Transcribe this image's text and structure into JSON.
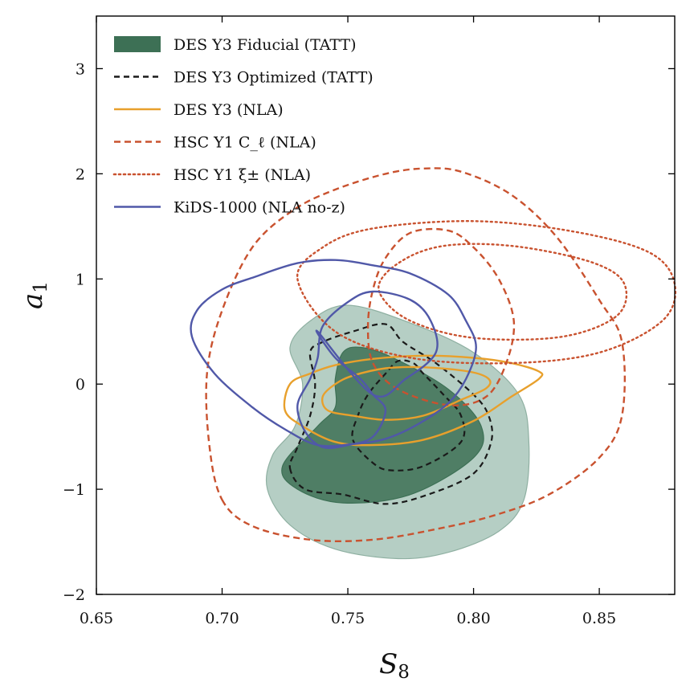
{
  "chart_data": {
    "type": "contour",
    "xlabel": "S",
    "xlabel_sub": "8",
    "ylabel": "a",
    "ylabel_sub": "1",
    "xlim": [
      0.65,
      0.88
    ],
    "ylim": [
      -2.0,
      3.5
    ],
    "xticks": [
      0.65,
      0.7,
      0.75,
      0.8,
      0.85
    ],
    "xtick_labels": [
      "0.65",
      "0.70",
      "0.75",
      "0.80",
      "0.85"
    ],
    "yticks": [
      -2,
      -1,
      0,
      1,
      2,
      3
    ],
    "ytick_labels": [
      "−2",
      "−1",
      "0",
      "1",
      "2",
      "3"
    ],
    "grid": false,
    "legend_position": "top-left",
    "colors": {
      "des_fiducial_inner": "#3d7055",
      "des_fiducial_outer": "#b5cec4",
      "des_optimized": "#1a1a1a",
      "des_nla": "#e8a02c",
      "hsc_cl": "#c9522f",
      "hsc_xi": "#c9522f",
      "kids": "#5058a8"
    },
    "series": [
      {
        "name": "DES Y3 Fiducial (TATT)",
        "style": "filled",
        "contours": [
          {
            "level": "95%",
            "points": [
              [
                0.72,
                -0.68
              ],
              [
                0.718,
                -1.0
              ],
              [
                0.727,
                -1.34
              ],
              [
                0.745,
                -1.57
              ],
              [
                0.77,
                -1.66
              ],
              [
                0.79,
                -1.6
              ],
              [
                0.81,
                -1.4
              ],
              [
                0.82,
                -1.1
              ],
              [
                0.822,
                -0.55
              ],
              [
                0.818,
                -0.1
              ],
              [
                0.8,
                0.3
              ],
              [
                0.775,
                0.58
              ],
              [
                0.75,
                0.75
              ],
              [
                0.735,
                0.6
              ],
              [
                0.727,
                0.35
              ],
              [
                0.732,
                0.0
              ],
              [
                0.729,
                -0.4
              ]
            ]
          },
          {
            "level": "68%",
            "points": [
              [
                0.724,
                -0.78
              ],
              [
                0.73,
                -1.0
              ],
              [
                0.748,
                -1.13
              ],
              [
                0.775,
                -1.05
              ],
              [
                0.8,
                -0.7
              ],
              [
                0.803,
                -0.4
              ],
              [
                0.79,
                -0.05
              ],
              [
                0.768,
                0.25
              ],
              [
                0.755,
                0.35
              ],
              [
                0.748,
                0.3
              ],
              [
                0.745,
                0.05
              ],
              [
                0.745,
                -0.22
              ],
              [
                0.738,
                -0.4
              ]
            ]
          }
        ]
      },
      {
        "name": "DES Y3 Optimized (TATT)",
        "style": "dashed",
        "contours": [
          {
            "level": "95%",
            "points": [
              [
                0.727,
                -0.8
              ],
              [
                0.733,
                -1.0
              ],
              [
                0.748,
                -1.05
              ],
              [
                0.765,
                -1.14
              ],
              [
                0.782,
                -1.05
              ],
              [
                0.8,
                -0.85
              ],
              [
                0.807,
                -0.55
              ],
              [
                0.806,
                -0.3
              ],
              [
                0.8,
                -0.1
              ],
              [
                0.785,
                0.2
              ],
              [
                0.772,
                0.4
              ],
              [
                0.765,
                0.57
              ],
              [
                0.752,
                0.5
              ],
              [
                0.74,
                0.4
              ],
              [
                0.735,
                0.3
              ],
              [
                0.737,
                0.0
              ],
              [
                0.735,
                -0.3
              ],
              [
                0.73,
                -0.6
              ]
            ]
          },
          {
            "level": "68%",
            "points": [
              [
                0.752,
                -0.53
              ],
              [
                0.76,
                -0.75
              ],
              [
                0.767,
                -0.82
              ],
              [
                0.78,
                -0.78
              ],
              [
                0.795,
                -0.55
              ],
              [
                0.795,
                -0.3
              ],
              [
                0.788,
                -0.1
              ],
              [
                0.78,
                0.1
              ],
              [
                0.776,
                0.2
              ],
              [
                0.77,
                0.22
              ],
              [
                0.765,
                0.1
              ],
              [
                0.758,
                -0.1
              ],
              [
                0.754,
                -0.3
              ]
            ]
          }
        ]
      },
      {
        "name": "DES Y3 (NLA)",
        "style": "solid",
        "contours": [
          {
            "level": "95%",
            "points": [
              [
                0.725,
                -0.25
              ],
              [
                0.732,
                -0.4
              ],
              [
                0.745,
                -0.55
              ],
              [
                0.76,
                -0.58
              ],
              [
                0.78,
                -0.53
              ],
              [
                0.8,
                -0.35
              ],
              [
                0.815,
                -0.12
              ],
              [
                0.826,
                0.05
              ],
              [
                0.826,
                0.12
              ],
              [
                0.815,
                0.2
              ],
              [
                0.8,
                0.25
              ],
              [
                0.78,
                0.27
              ],
              [
                0.76,
                0.24
              ],
              [
                0.745,
                0.18
              ],
              [
                0.735,
                0.1
              ],
              [
                0.727,
                0.0
              ]
            ]
          },
          {
            "level": "68%",
            "points": [
              [
                0.742,
                -0.25
              ],
              [
                0.752,
                -0.3
              ],
              [
                0.765,
                -0.34
              ],
              [
                0.78,
                -0.3
              ],
              [
                0.795,
                -0.15
              ],
              [
                0.805,
                -0.04
              ],
              [
                0.806,
                0.05
              ],
              [
                0.798,
                0.12
              ],
              [
                0.78,
                0.16
              ],
              [
                0.765,
                0.15
              ],
              [
                0.752,
                0.08
              ],
              [
                0.745,
                0.0
              ],
              [
                0.74,
                -0.12
              ]
            ]
          }
        ]
      },
      {
        "name": "HSC Y1 C_ℓ (NLA)",
        "style": "dashed",
        "contours": [
          {
            "level": "95%",
            "points": [
              [
                0.7,
                -1.1
              ],
              [
                0.712,
                -1.35
              ],
              [
                0.735,
                -1.48
              ],
              [
                0.76,
                -1.48
              ],
              [
                0.785,
                -1.38
              ],
              [
                0.808,
                -1.25
              ],
              [
                0.83,
                -1.05
              ],
              [
                0.85,
                -0.7
              ],
              [
                0.859,
                -0.3
              ],
              [
                0.859,
                0.4
              ],
              [
                0.85,
                0.8
              ],
              [
                0.833,
                1.4
              ],
              [
                0.815,
                1.8
              ],
              [
                0.795,
                2.02
              ],
              [
                0.78,
                2.05
              ],
              [
                0.765,
                2.0
              ],
              [
                0.745,
                1.85
              ],
              [
                0.728,
                1.65
              ],
              [
                0.712,
                1.3
              ],
              [
                0.7,
                0.7
              ],
              [
                0.694,
                0.1
              ],
              [
                0.695,
                -0.6
              ]
            ]
          },
          {
            "level": "68%",
            "points": [
              [
                0.76,
                0.2
              ],
              [
                0.77,
                -0.05
              ],
              [
                0.79,
                -0.2
              ],
              [
                0.805,
                -0.12
              ],
              [
                0.813,
                0.2
              ],
              [
                0.816,
                0.6
              ],
              [
                0.81,
                1.0
              ],
              [
                0.8,
                1.3
              ],
              [
                0.79,
                1.46
              ],
              [
                0.775,
                1.44
              ],
              [
                0.765,
                1.2
              ],
              [
                0.76,
                0.9
              ],
              [
                0.758,
                0.55
              ]
            ]
          }
        ]
      },
      {
        "name": "HSC Y1 ξ± (NLA)",
        "style": "dotted",
        "contours": [
          {
            "level": "95%",
            "points": [
              [
                0.73,
                1.0
              ],
              [
                0.745,
                0.5
              ],
              [
                0.775,
                0.25
              ],
              [
                0.815,
                0.2
              ],
              [
                0.85,
                0.3
              ],
              [
                0.875,
                0.6
              ],
              [
                0.88,
                0.95
              ],
              [
                0.87,
                1.25
              ],
              [
                0.84,
                1.45
              ],
              [
                0.8,
                1.55
              ],
              [
                0.76,
                1.48
              ],
              [
                0.74,
                1.3
              ]
            ]
          },
          {
            "level": "68%",
            "points": [
              [
                0.763,
                0.85
              ],
              [
                0.775,
                0.6
              ],
              [
                0.8,
                0.44
              ],
              [
                0.835,
                0.45
              ],
              [
                0.857,
                0.65
              ],
              [
                0.86,
                0.95
              ],
              [
                0.848,
                1.15
              ],
              [
                0.82,
                1.3
              ],
              [
                0.795,
                1.33
              ],
              [
                0.778,
                1.25
              ],
              [
                0.765,
                1.05
              ]
            ]
          }
        ]
      },
      {
        "name": "KiDS-1000 (NLA no-z)",
        "style": "solid",
        "contours": [
          {
            "level": "95%",
            "points": [
              [
                0.688,
                0.45
              ],
              [
                0.697,
                0.1
              ],
              [
                0.712,
                -0.22
              ],
              [
                0.725,
                -0.43
              ],
              [
                0.738,
                -0.58
              ],
              [
                0.752,
                -0.57
              ],
              [
                0.765,
                -0.52
              ],
              [
                0.778,
                -0.38
              ],
              [
                0.79,
                -0.18
              ],
              [
                0.797,
                0.05
              ],
              [
                0.801,
                0.35
              ],
              [
                0.797,
                0.6
              ],
              [
                0.79,
                0.85
              ],
              [
                0.775,
                1.05
              ],
              [
                0.76,
                1.13
              ],
              [
                0.745,
                1.18
              ],
              [
                0.73,
                1.15
              ],
              [
                0.713,
                1.02
              ],
              [
                0.7,
                0.9
              ],
              [
                0.69,
                0.7
              ]
            ]
          },
          {
            "level": "68%",
            "points": [
              [
                0.738,
                0.5
              ],
              [
                0.745,
                0.25
              ],
              [
                0.755,
                0.05
              ],
              [
                0.76,
                -0.1
              ],
              [
                0.765,
                -0.25
              ],
              [
                0.76,
                -0.5
              ],
              [
                0.75,
                -0.58
              ],
              [
                0.74,
                -0.6
              ],
              [
                0.733,
                -0.45
              ],
              [
                0.73,
                -0.2
              ],
              [
                0.735,
                0.05
              ],
              [
                0.738,
                0.25
              ],
              [
                0.74,
                0.55
              ],
              [
                0.75,
                0.78
              ],
              [
                0.76,
                0.88
              ],
              [
                0.775,
                0.8
              ],
              [
                0.783,
                0.6
              ],
              [
                0.785,
                0.3
              ],
              [
                0.773,
                0.05
              ],
              [
                0.76,
                -0.1
              ]
            ]
          }
        ]
      }
    ]
  }
}
